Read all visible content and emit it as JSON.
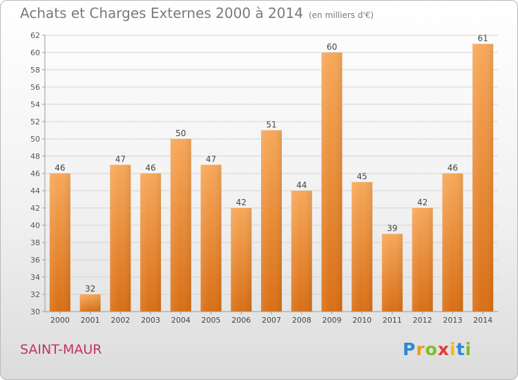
{
  "header": {
    "title": "Achats et Charges Externes 2000 à 2014",
    "subtitle": "(en milliers d'€)"
  },
  "footer": {
    "commune": "SAINT-MAUR"
  },
  "logo": {
    "letters": [
      "P",
      "r",
      "o",
      "x",
      "i",
      "t",
      "i"
    ],
    "colors": [
      "#2f86d6",
      "#f39a1b",
      "#7cbd2b",
      "#e23b2d",
      "#f2b70f",
      "#2f86d6",
      "#7cbd2b"
    ]
  },
  "chart_data": {
    "type": "bar",
    "categories": [
      "2000",
      "2001",
      "2002",
      "2003",
      "2004",
      "2005",
      "2006",
      "2007",
      "2008",
      "2009",
      "2010",
      "2011",
      "2012",
      "2013",
      "2014"
    ],
    "values": [
      46,
      32,
      47,
      46,
      50,
      47,
      42,
      51,
      44,
      60,
      45,
      39,
      42,
      46,
      61
    ],
    "ylim": [
      30,
      62
    ],
    "yticks": [
      30,
      32,
      34,
      36,
      38,
      40,
      42,
      44,
      46,
      48,
      50,
      52,
      54,
      56,
      58,
      60,
      62
    ],
    "grid": true,
    "bar_color_top": "#f7a85a",
    "bar_color_bottom": "#d96f15"
  }
}
